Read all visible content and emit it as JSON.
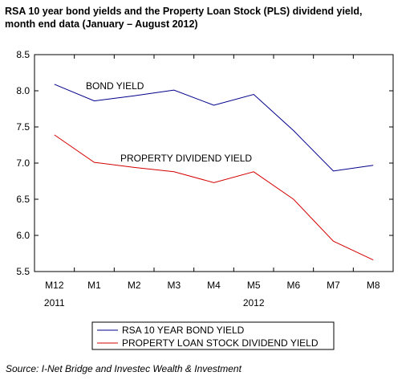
{
  "title_lines": [
    "RSA 10 year bond yields and the Property Loan Stock (PLS) dividend yield,",
    "month end data (January – August 2012)"
  ],
  "source": "Source: I-Net Bridge and Investec Wealth & Investment",
  "chart_data": {
    "type": "line",
    "categories": [
      "M12",
      "M1",
      "M2",
      "M3",
      "M4",
      "M5",
      "M6",
      "M7",
      "M8"
    ],
    "year_labels": [
      {
        "text": "2011",
        "category_index": 0
      },
      {
        "text": "2012",
        "category_index": 5
      }
    ],
    "ylim": [
      5.5,
      8.5
    ],
    "yticks": [
      5.5,
      6.0,
      6.5,
      7.0,
      7.5,
      8.0,
      8.5
    ],
    "grid": false,
    "series": [
      {
        "name": "RSA 10 YEAR BOND YIELD",
        "annotation": "BOND YIELD",
        "color": "#00008b",
        "values": [
          8.09,
          7.86,
          7.93,
          8.01,
          7.8,
          7.95,
          7.45,
          6.89,
          6.97
        ]
      },
      {
        "name": "PROPERTY LOAN STOCK DIVIDEND YIELD",
        "annotation": "PROPERTY DIVIDEND YIELD",
        "color": "#d40000",
        "values": [
          7.39,
          7.01,
          6.94,
          6.88,
          6.73,
          6.88,
          6.5,
          5.92,
          5.66
        ]
      }
    ],
    "legend_placement": "bottom"
  }
}
